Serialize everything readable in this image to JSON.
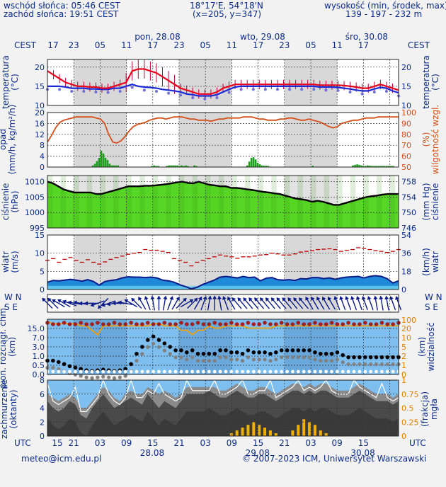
{
  "header": {
    "sunrise": "wschód słońca: 05:46 CEST",
    "sunset": "zachód słońca: 19:51 CEST",
    "coords": "18°17'E, 54°18'N",
    "grid": "(x=205,  y=347)",
    "elev_title": "wysokość (min, środek, max)",
    "elev_values": "139 - 197 - 232 m"
  },
  "days_top": [
    "pon, 28.08",
    "wto, 29.08",
    "śro, 30.08"
  ],
  "days_bottom": [
    "28.08",
    "29.08",
    "30.08"
  ],
  "tz_top": "CEST",
  "tz_bottom": "UTC",
  "hours_cest": [
    "17",
    "23",
    "05",
    "11",
    "17",
    "23",
    "05",
    "11",
    "17",
    "23",
    "05",
    "11",
    "17"
  ],
  "hours_utc": [
    "15",
    "21",
    "03",
    "09",
    "15",
    "21",
    "03",
    "09",
    "15",
    "21",
    "03",
    "09",
    "15"
  ],
  "footer": {
    "email": "meteo@icm.edu.pl",
    "copyright": "© 2007-2023 ICM, Uniwersytet Warszawski"
  },
  "colors": {
    "temperature": "#e8001c",
    "dewpoint": "#1a2ad8",
    "humidity": "#d4501a",
    "precip": "#1e9e1e",
    "pressure_fill": "#4fd41a",
    "wind_fill": "#1e8ad8",
    "sky": "#7fbfef",
    "cloud_dark": "#3a3a3a",
    "fog": "#f0b000"
  },
  "chart_data": [
    {
      "type": "line",
      "name": "temperature",
      "ylabel_left": "temperatura (°C)",
      "ylabel_right": "temperatura (°C)",
      "ylim": [
        10,
        22
      ],
      "yticks": [
        10,
        15,
        20
      ],
      "yticks_right": [
        10,
        15,
        20
      ],
      "series": [
        {
          "values": [
            19,
            18,
            17,
            16,
            15.5,
            15,
            15,
            14.8,
            14.8,
            14.5,
            14.5,
            15,
            15.5,
            16,
            19,
            19.5,
            19.5,
            19,
            18.5,
            17.5,
            16.5,
            15.5,
            14.5,
            14,
            13.5,
            13,
            13,
            13,
            13.5,
            14.5,
            15,
            15.5,
            15.5,
            15.5,
            15.5,
            15.5,
            15.5,
            15.5,
            15.5,
            15.5,
            15.5,
            15.5,
            15.5,
            15.5,
            15.5,
            15.3,
            15.3,
            15.3,
            15.3,
            15.2,
            15,
            14.8,
            14.5,
            14.5,
            15,
            15.5,
            15,
            14.5,
            14
          ]
        },
        {
          "values": [
            15,
            15,
            15,
            14.8,
            14.5,
            14.5,
            14.5,
            14.3,
            14.3,
            14.2,
            14.2,
            14.5,
            14.5,
            15,
            15.5,
            15,
            14.8,
            14.7,
            14.5,
            14.2,
            14,
            13.8,
            13.5,
            13,
            12.8,
            12.5,
            12.5,
            12.5,
            12.8,
            13.5,
            14.2,
            14.8,
            15,
            15,
            15,
            15,
            15,
            15,
            15,
            15,
            15,
            15,
            15,
            15,
            15,
            14.8,
            14.8,
            14.8,
            14.7,
            14.5,
            14.3,
            14,
            13.8,
            13.8,
            14.3,
            14.7,
            14.5,
            13.8,
            13.3
          ]
        }
      ]
    },
    {
      "type": "bar",
      "name": "precipitation",
      "ylabel_left": "opad (mm/h, kg/m²/h)",
      "ylabel_right": "wilgotność wzgl. (%)",
      "ylim": [
        0,
        20
      ],
      "yticks": [
        0,
        4,
        8,
        12,
        16,
        20
      ],
      "yticks_right": [
        50,
        60,
        70,
        80,
        90,
        100
      ],
      "precip": [
        0,
        0,
        0,
        0,
        0,
        0,
        0,
        0,
        0,
        0,
        0,
        0,
        0,
        0,
        0,
        0,
        0,
        0,
        0,
        0,
        0,
        0.6,
        1.2,
        2.2,
        3.4,
        6,
        5,
        3.4,
        2.6,
        1.2,
        0.6,
        0.6,
        0.6,
        0.6,
        0,
        0,
        0,
        0,
        0,
        0,
        0,
        0,
        0,
        0,
        0,
        0,
        0,
        0,
        0,
        0.4,
        0.6,
        0.4,
        0.4,
        0,
        0,
        0,
        0.4,
        0.6,
        0.6,
        0.6,
        0.6,
        0.6,
        0.4,
        0.6,
        0.4,
        0.6,
        0.4,
        0,
        0,
        0.6,
        0.4,
        0,
        0,
        0,
        0,
        0,
        0,
        0,
        0,
        0,
        0,
        0,
        0,
        0,
        0,
        0,
        0,
        0,
        0,
        0,
        0,
        0,
        0,
        0,
        0.6,
        2,
        3.4,
        3.6,
        2.8,
        1.6,
        1,
        0.6,
        0.5,
        0.5,
        0.4,
        0,
        0,
        0,
        0,
        0,
        0,
        0,
        0,
        0,
        0,
        0,
        0,
        0,
        0,
        0,
        0,
        0,
        0,
        0,
        0,
        0.5,
        0,
        0,
        0,
        0,
        0,
        0,
        0,
        0,
        0,
        0,
        0,
        0,
        0,
        0,
        0,
        0,
        0,
        0,
        0.6,
        0.8,
        1,
        0.8,
        0.6,
        0.4,
        0.4,
        0.6,
        0.5,
        0.4,
        0.4,
        0.4,
        0.4,
        0.4,
        0.4,
        0.4,
        0.4,
        0.4,
        0.4,
        0.4,
        0,
        0
      ],
      "humidity": [
        73,
        79,
        86,
        91,
        93,
        94,
        95,
        96,
        96,
        96,
        96,
        96,
        95,
        94,
        90,
        80,
        73,
        72,
        74,
        78,
        83,
        87,
        89,
        90,
        91,
        93,
        94,
        95,
        95,
        94,
        95,
        96,
        96,
        96,
        95,
        94,
        94,
        93,
        93,
        93,
        92,
        93,
        94,
        94,
        95,
        95,
        95,
        95,
        96,
        96,
        96,
        95,
        94,
        94,
        93,
        93,
        93,
        94,
        94,
        95,
        95,
        94,
        93,
        93,
        94,
        93,
        92,
        91,
        89,
        87,
        86,
        87,
        90,
        91,
        92,
        93,
        93,
        94,
        95,
        95,
        95,
        96,
        96,
        96,
        96,
        96,
        96
      ]
    },
    {
      "type": "area",
      "name": "pressure",
      "ylabel_left": "ciśnienie (hPa)",
      "ylabel_right": "ciśnienie (mm Hg)",
      "ylim": [
        995,
        1012
      ],
      "yticks": [
        995,
        1000,
        1005,
        1010
      ],
      "yticks_right": [
        746,
        750,
        754,
        758
      ],
      "values": [
        1010,
        1009.5,
        1008.5,
        1007.5,
        1007,
        1006.5,
        1006.5,
        1006.5,
        1006.5,
        1006,
        1006,
        1006.5,
        1007,
        1007.5,
        1008,
        1008.5,
        1008.5,
        1008.5,
        1008.7,
        1008.7,
        1008.8,
        1009,
        1009.2,
        1009.5,
        1009.8,
        1010,
        1009.6,
        1009.5,
        1010,
        1009.5,
        1009,
        1008.8,
        1008.5,
        1008.5,
        1008,
        1008,
        1007.8,
        1007.5,
        1007.3,
        1007,
        1006.7,
        1006.5,
        1006.2,
        1006,
        1005.5,
        1005,
        1004.5,
        1004.3,
        1004,
        1003.5,
        1003.8,
        1003.5,
        1003,
        1002.5,
        1002.5,
        1003,
        1003.5,
        1004,
        1004.5,
        1005,
        1005.3,
        1005.5,
        1005.8,
        1006,
        1006,
        1006
      ]
    },
    {
      "type": "area",
      "name": "wind",
      "ylabel_left": "wiatr (m/s)",
      "ylabel_right": "wiatr (km/h)",
      "ylim": [
        0,
        15
      ],
      "yticks": [
        0,
        5,
        10,
        15
      ],
      "yticks_right": [
        0,
        18,
        36,
        54
      ],
      "values": [
        2,
        2.5,
        2.4,
        2.6,
        2.8,
        2.6,
        2.3,
        2.7,
        2.2,
        1.2,
        2.2,
        2.5,
        2.7,
        3.2,
        3.5,
        3.4,
        3.4,
        3.3,
        3.4,
        3.2,
        2.6,
        2.4,
        2,
        1.3,
        0.8,
        0.2,
        0.6,
        1.4,
        2,
        2.6,
        3.4,
        3.6,
        3.4,
        3.2,
        3.6,
        3.3,
        3.4,
        2.4,
        3.1,
        3.3,
        2.7,
        2.6,
        2.7,
        2.5,
        3,
        2.9,
        3.3,
        3.3,
        3,
        3.2,
        2.8,
        3.2,
        3.4,
        3.5,
        3.6,
        3.2,
        3.6,
        3.8,
        3.6,
        3,
        1.8,
        2.4
      ],
      "gusts": [
        8,
        8.5,
        7.5,
        8.3,
        8.8,
        8,
        7.5,
        8.2,
        7.5,
        7,
        7.6,
        8.3,
        8.8,
        9.2,
        9.7,
        10,
        10.2,
        11,
        10.8,
        10.8,
        10.5,
        10.2,
        8.5,
        8,
        7.5,
        6.5,
        7.5,
        8,
        8.5,
        9,
        9.5,
        9.2,
        9,
        8.6,
        9,
        9,
        9.2,
        9.5,
        9.6,
        10,
        9.8,
        9.5,
        9.5,
        9.8,
        10.3,
        10.5,
        10.7,
        11,
        11.1,
        11.2,
        11,
        10.5,
        10.8,
        11,
        11.5,
        11.3,
        11,
        10.7,
        10.5,
        10.2,
        10.5,
        11
      ]
    },
    {
      "type": "scatter",
      "name": "wind_direction",
      "label_left": "W N S E",
      "label_right": "W N S E",
      "directions_deg": [
        315,
        315,
        300,
        300,
        290,
        280,
        280,
        270,
        270,
        250,
        225,
        250,
        260,
        270,
        280,
        300,
        315,
        330,
        340,
        350,
        0,
        10,
        20,
        30,
        45,
        60,
        45,
        30,
        20,
        10,
        0,
        350,
        340,
        330,
        320,
        320,
        320,
        320,
        320,
        320,
        320,
        320,
        320,
        320,
        320,
        320,
        320,
        330,
        330,
        330,
        330,
        330,
        340,
        340,
        340,
        340,
        340,
        340,
        340,
        350,
        350,
        350,
        340,
        340
      ]
    },
    {
      "type": "scatter",
      "name": "visibility",
      "ylabel_left": "pion. rozciągł. chm. (km)",
      "ylabel_right": "widzialność (km)",
      "yticks": [
        "0.0",
        "0.5",
        "1.0",
        "3.0",
        "7.0",
        "15.0"
      ],
      "yticks_right": [
        "0",
        "1",
        "2",
        "5",
        "10",
        "20",
        "100"
      ],
      "visibility": [
        24,
        23,
        23,
        23,
        23,
        23,
        22,
        22,
        20,
        18,
        22,
        22,
        22,
        22,
        22,
        22,
        22,
        22,
        22,
        23,
        23,
        22,
        22,
        22,
        20,
        20,
        18,
        20,
        20,
        22,
        21,
        21,
        22,
        22,
        22,
        22,
        21,
        21,
        21,
        21,
        21,
        22,
        22,
        22,
        22,
        22,
        22,
        22,
        22,
        22,
        22,
        22,
        22,
        22,
        22,
        22,
        22,
        22,
        22,
        22,
        22,
        22,
        22,
        22
      ],
      "cloud_extent": [
        2,
        2,
        1.8,
        1.5,
        1.2,
        1,
        0.8,
        0.6,
        0.5,
        0.6,
        0.7,
        0.6,
        0.5,
        0.6,
        0.8,
        1.5,
        3,
        4,
        5,
        5.5,
        5,
        4.5,
        4,
        3.5,
        3.5,
        3.2,
        3.5,
        3,
        3,
        3,
        3,
        3.5,
        3.5,
        3.2,
        3.2,
        3,
        3.5,
        3.2,
        3.2,
        3.2,
        3,
        3.2,
        3.5,
        3.5,
        3.5,
        3.5,
        3.5,
        3.5,
        3.2,
        3,
        3,
        3,
        3.2,
        2.8,
        2.5,
        2.5,
        2.5,
        2.5,
        2.5,
        2.5,
        2.5,
        2.5,
        2.5,
        2.5
      ]
    },
    {
      "type": "area",
      "name": "cloudiness",
      "ylabel_left": "zachmurzenie (oktanty)",
      "ylabel_right": "(frakcja) mgła",
      "ylim": [
        0,
        8
      ],
      "yticks": [
        0,
        2,
        4,
        6,
        8
      ],
      "yticks_right": [
        "0",
        "0.25",
        "0.5",
        "0.75",
        "1"
      ],
      "total": [
        6,
        5.5,
        5,
        5.5,
        6,
        5.5,
        4,
        4,
        5,
        6,
        7,
        6.5,
        5.5,
        5,
        6,
        6.5,
        6,
        6,
        7,
        6.5,
        6,
        6.5,
        6,
        5.5,
        6,
        7,
        7,
        7,
        7,
        7,
        7,
        6.5,
        6.5,
        7,
        7.5,
        7,
        6.5,
        6.5,
        7,
        7,
        6.5,
        6,
        6.5,
        7,
        7.5,
        7.5,
        7,
        7.5,
        7,
        7.5,
        7.5,
        7,
        6.5,
        6.5,
        6.5,
        7,
        7.5,
        7,
        6.5,
        6,
        6,
        6,
        5.5,
        6
      ],
      "low": [
        5,
        4,
        3.5,
        4,
        5,
        4.5,
        3,
        2.5,
        4,
        5,
        6,
        5,
        4,
        4.5,
        5,
        5.5,
        5,
        4.5,
        6,
        5,
        4,
        5,
        4.5,
        4,
        5,
        6,
        6,
        6,
        6,
        6.5,
        6,
        5.5,
        5.5,
        6,
        6.5,
        6,
        5.5,
        5.5,
        6,
        6,
        5.5,
        5,
        5.5,
        6,
        6.5,
        6.5,
        6,
        6.5,
        6,
        6.5,
        6.5,
        6,
        5.5,
        5.5,
        5.5,
        6,
        6.5,
        6,
        5.5,
        5,
        5,
        5,
        4.5,
        5
      ],
      "fog": [
        0,
        0,
        0,
        0,
        0,
        0,
        0,
        0,
        0,
        0,
        0,
        0,
        0,
        0,
        0,
        0,
        0,
        0,
        0,
        0,
        0,
        0,
        0,
        0,
        0,
        0,
        0,
        0,
        0,
        0,
        0,
        0,
        0,
        0.05,
        0.1,
        0.15,
        0.2,
        0.25,
        0.2,
        0.15,
        0.1,
        0.05,
        0,
        0,
        0.1,
        0.2,
        0.3,
        0.25,
        0.2,
        0.1,
        0.05,
        0,
        0,
        0,
        0,
        0,
        0,
        0,
        0,
        0,
        0,
        0,
        0,
        0
      ]
    }
  ]
}
